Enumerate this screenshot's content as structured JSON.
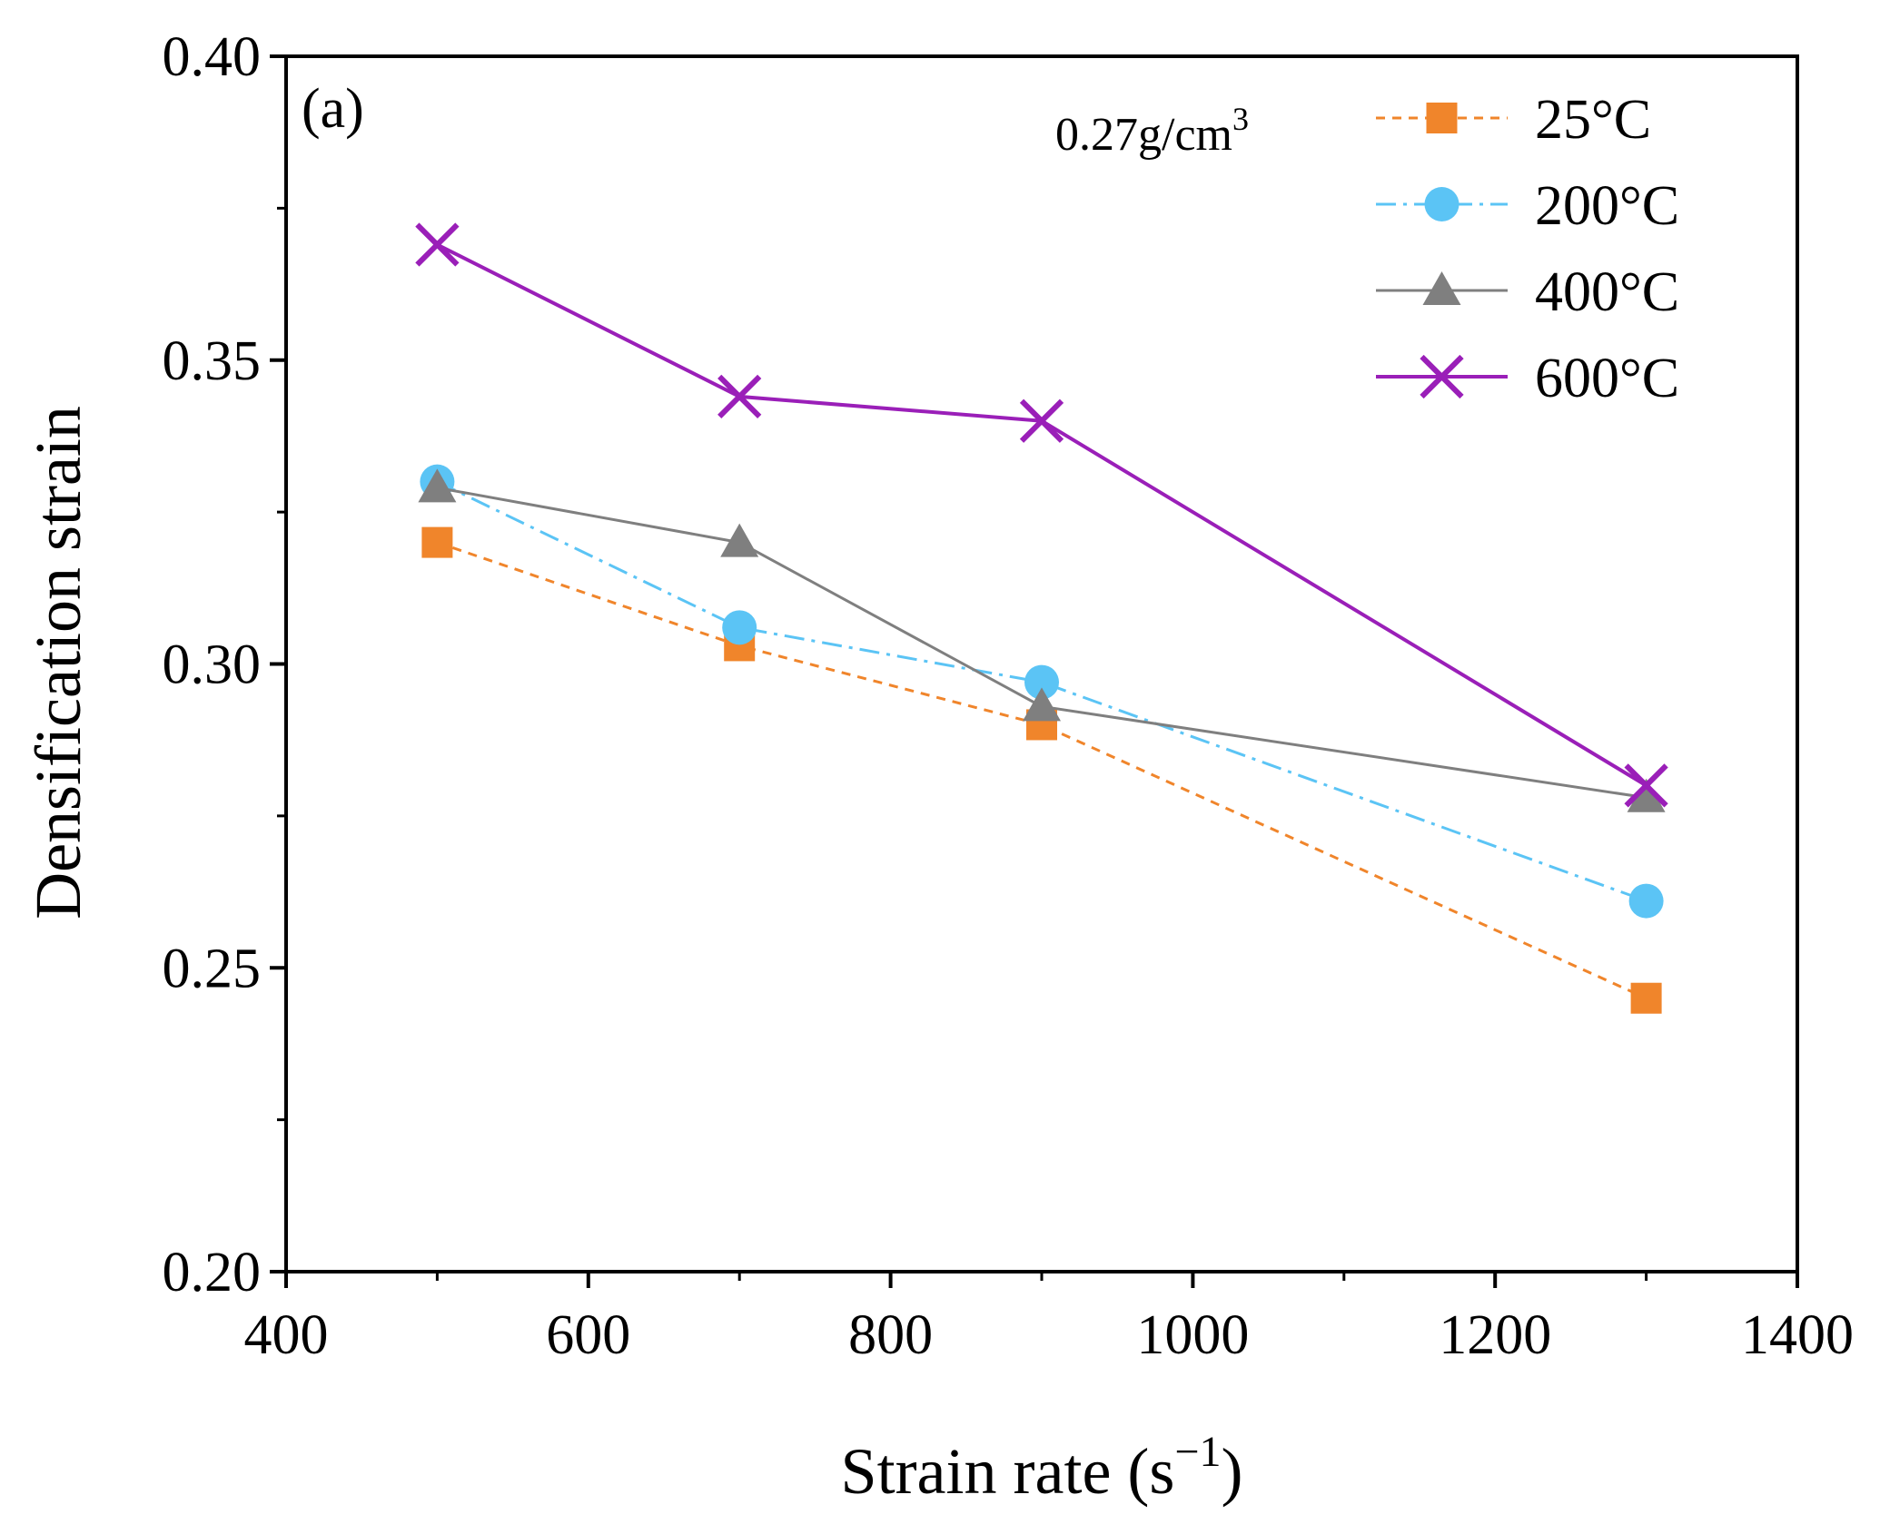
{
  "chart_data": {
    "type": "line",
    "panel_label": "(a)",
    "annotation": {
      "text": "0.27g/cm",
      "sup": "3"
    },
    "xlabel": {
      "text": "Strain rate (s",
      "sup": "−1",
      "close": ")"
    },
    "ylabel": "Densification strain",
    "xlim": [
      400,
      1400
    ],
    "ylim": [
      0.2,
      0.4
    ],
    "x_ticks": [
      "400",
      "600",
      "800",
      "1000",
      "1200",
      "1400"
    ],
    "y_ticks": [
      "0.20",
      "0.25",
      "0.30",
      "0.35",
      "0.40"
    ],
    "x": [
      500,
      700,
      900,
      1300
    ],
    "series": [
      {
        "name": "25°C",
        "values": [
          0.32,
          0.303,
          0.29,
          0.245
        ],
        "color": "#f0852b",
        "marker": "square",
        "line": "dash"
      },
      {
        "name": "200°C",
        "values": [
          0.33,
          0.306,
          0.297,
          0.261
        ],
        "color": "#5bc4f5",
        "marker": "circle",
        "line": "dashdot"
      },
      {
        "name": "400°C",
        "values": [
          0.329,
          0.32,
          0.293,
          0.278
        ],
        "color": "#7f7f7f",
        "marker": "triangle",
        "line": "solid"
      },
      {
        "name": "600°C",
        "values": [
          0.369,
          0.344,
          0.34,
          0.28
        ],
        "color": "#9a1fb8",
        "marker": "cross",
        "line": "solid"
      }
    ],
    "legend_position": "top-right",
    "grid": false
  }
}
